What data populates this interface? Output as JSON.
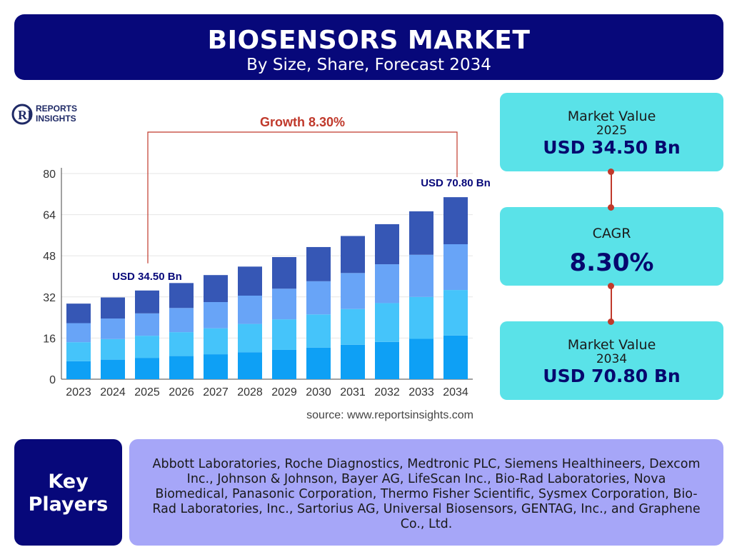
{
  "header": {
    "title": "BIOSENSORS MARKET",
    "subtitle": "By Size, Share, Forecast 2034"
  },
  "logo": {
    "mark": "RI",
    "line1": "REPORTS",
    "line2": "INSIGHTS"
  },
  "colors": {
    "navy": "#07087a",
    "cyan": "#5ae2e8",
    "lavender": "#a6a6f8",
    "accent_red": "#c0392b",
    "stack": [
      "#0ea0f5",
      "#45c4fa",
      "#68a4f7",
      "#3657b5"
    ]
  },
  "chart_data": {
    "type": "bar",
    "stacked": true,
    "categories": [
      "2023",
      "2024",
      "2025",
      "2026",
      "2027",
      "2028",
      "2029",
      "2030",
      "2031",
      "2032",
      "2033",
      "2034"
    ],
    "totals": [
      29.4,
      31.8,
      34.5,
      37.4,
      40.5,
      43.8,
      47.5,
      51.4,
      55.7,
      60.3,
      65.3,
      70.8
    ],
    "series": [
      {
        "values": [
          7.0,
          7.6,
          8.3,
          9.0,
          9.7,
          10.5,
          11.4,
          12.3,
          13.4,
          14.5,
          15.7,
          17.0
        ]
      },
      {
        "values": [
          7.4,
          8.0,
          8.6,
          9.3,
          10.1,
          11.0,
          11.9,
          12.9,
          13.9,
          15.1,
          16.3,
          17.7
        ]
      },
      {
        "values": [
          7.4,
          8.0,
          8.7,
          9.4,
          10.2,
          11.0,
          11.9,
          12.9,
          14.0,
          15.1,
          16.4,
          17.8
        ]
      },
      {
        "values": [
          7.6,
          8.2,
          8.9,
          9.7,
          10.5,
          11.3,
          12.3,
          13.3,
          14.4,
          15.6,
          16.9,
          18.3
        ]
      }
    ],
    "ylim": [
      0,
      80
    ],
    "yticks": [
      0,
      16,
      32,
      48,
      64,
      80
    ],
    "grid": true,
    "annotations": {
      "start_label": "USD 34.50 Bn",
      "end_label": "USD 70.80 Bn",
      "growth_label": "Growth 8.30%"
    },
    "source": "source: www.reportsinsights.com"
  },
  "stats": {
    "value_2025": {
      "label": "Market Value",
      "year": "2025",
      "value": "USD 34.50 Bn"
    },
    "cagr": {
      "label": "CAGR",
      "value": "8.30%"
    },
    "value_2034": {
      "label": "Market Value",
      "year": "2034",
      "value": "USD 70.80 Bn"
    }
  },
  "key_players": {
    "heading_line1": "Key",
    "heading_line2": "Players",
    "list": "Abbott Laboratories, Roche Diagnostics, Medtronic PLC, Siemens Healthineers, Dexcom Inc., Johnson & Johnson, Bayer AG, LifeScan Inc., Bio-Rad Laboratories, Nova Biomedical, Panasonic Corporation, Thermo Fisher Scientific, Sysmex Corporation, Bio-Rad Laboratories, Inc., Sartorius AG, Universal Biosensors, GENTAG, Inc., and Graphene Co., Ltd."
  }
}
